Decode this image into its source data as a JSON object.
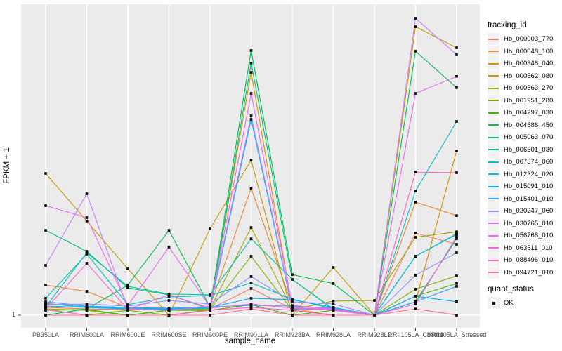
{
  "colors": {
    "panel_bg": "#EBEBEB",
    "gridline": "#FFFFFF",
    "legend_key_bg": "#F2F2F2",
    "point": "#000000",
    "tick": "#333333",
    "tick_label": "#4D4D4D"
  },
  "legend": {
    "tracking_title": "tracking_id",
    "quant_title": "quant_status",
    "quant_items": [
      {
        "label": "OK",
        "marker": "black-square"
      }
    ]
  },
  "chart_data": {
    "type": "line",
    "title": "",
    "xlabel": "sample_name",
    "ylabel": "FPKM + 1",
    "y_scale": "log10",
    "y_tick_labels": [
      "1"
    ],
    "legend_position": "right",
    "point_shape": "filled-square",
    "point_color": "#000000",
    "categories": [
      "PB350LA",
      "RRIM600LA",
      "RRIM600LE",
      "RRIM600SE",
      "RRIM600PE",
      "RRIM901LA",
      "RRIM928BA",
      "RRIM928LA",
      "RRIM928LE",
      "RRII105LA_Control",
      "RRII105LA_Stressed"
    ],
    "series": [
      {
        "name": "Hb_000003_770",
        "color": "#F8766D",
        "values": [
          1.27,
          1.21,
          1.19,
          1.16,
          1.21,
          2.27,
          1.21,
          1.0,
          1.0,
          12.4,
          8.79
        ]
      },
      {
        "name": "Hb_000048_100",
        "color": "#EA8331",
        "values": [
          2.52,
          2.08,
          1.27,
          1.21,
          1.32,
          49.2,
          1.32,
          1.21,
          1.0,
          32.0,
          21.2
        ]
      },
      {
        "name": "Hb_000348_040",
        "color": "#D89000",
        "values": [
          1.44,
          1.27,
          1.21,
          1.16,
          1.27,
          1710,
          1.27,
          1.16,
          1.0,
          1.51,
          154
        ]
      },
      {
        "name": "Hb_000562_080",
        "color": "#C09B00",
        "values": [
          77.3,
          17.9,
          4.14,
          1.0,
          14.1,
          116,
          1.0,
          4.32,
          1.0,
          6940,
          3640
        ]
      },
      {
        "name": "Hb_000563_270",
        "color": "#A3A500",
        "values": [
          1.21,
          1.16,
          1.0,
          1.16,
          1.21,
          14.7,
          1.19,
          1.54,
          1.57,
          10.9,
          12.9
        ]
      },
      {
        "name": "Hb_001951_280",
        "color": "#7CAE00",
        "values": [
          1.19,
          1.0,
          1.16,
          1.0,
          1.19,
          6.1,
          1.16,
          1.0,
          1.0,
          2.22,
          3.34
        ]
      },
      {
        "name": "Hb_004297_030",
        "color": "#39B600",
        "values": [
          1.16,
          1.19,
          1.0,
          1.16,
          1.16,
          1.38,
          1.0,
          1.16,
          1.0,
          1.79,
          2.64
        ]
      },
      {
        "name": "Hb_004586_450",
        "color": "#00BB4E",
        "values": [
          1.0,
          1.21,
          2.52,
          13.5,
          1.29,
          3340,
          3.48,
          2.64,
          1.0,
          3270,
          1070
        ]
      },
      {
        "name": "Hb_005063_070",
        "color": "#00BF7D",
        "values": [
          13.5,
          7.08,
          2.31,
          1.87,
          1.21,
          2270,
          3.0,
          1.21,
          1.0,
          1.51,
          10.4
        ]
      },
      {
        "name": "Hb_006501_030",
        "color": "#00C1A3",
        "values": [
          1.29,
          6.79,
          2.42,
          1.91,
          1.87,
          10.4,
          3.0,
          1.19,
          1.0,
          6.1,
          11.9
        ]
      },
      {
        "name": "Hb_007574_060",
        "color": "#00BFC4",
        "values": [
          1.68,
          6.5,
          1.38,
          1.75,
          1.83,
          2.69,
          1.64,
          1.21,
          1.0,
          45.1,
          380
        ]
      },
      {
        "name": "Hb_012324_020",
        "color": "#00BAE0",
        "values": [
          1.32,
          1.27,
          1.21,
          1.19,
          1.24,
          405,
          1.21,
          1.19,
          1.0,
          6.1,
          12.1
        ]
      },
      {
        "name": "Hb_015091_010",
        "color": "#00B0F6",
        "values": [
          1.41,
          1.29,
          1.24,
          1.21,
          1.27,
          1.68,
          1.61,
          1.27,
          1.0,
          1.79,
          1.51
        ]
      },
      {
        "name": "Hb_015401_010",
        "color": "#35A2FF",
        "values": [
          1.51,
          1.32,
          1.27,
          1.24,
          1.29,
          1.35,
          1.32,
          1.24,
          1.0,
          1.51,
          2.42
        ]
      },
      {
        "name": "Hb_020247_060",
        "color": "#9590FF",
        "values": [
          1.38,
          1.41,
          1.32,
          1.57,
          1.41,
          3.27,
          1.51,
          1.41,
          1.0,
          3.41,
          6.79
        ]
      },
      {
        "name": "Hb_030765_010",
        "color": "#C77CFF",
        "values": [
          4.61,
          41.4,
          1.21,
          1.16,
          1.32,
          451,
          1.27,
          1.19,
          1.0,
          8980,
          2930
        ]
      },
      {
        "name": "Hb_056768_010",
        "color": "#E76BF3",
        "values": [
          28.7,
          19.9,
          1.35,
          8.07,
          1.29,
          898,
          1.35,
          1.21,
          1.0,
          898,
          1510
        ]
      },
      {
        "name": "Hb_063511_010",
        "color": "#FA62DB",
        "values": [
          1.21,
          4.92,
          1.19,
          1.87,
          1.24,
          1.41,
          1.24,
          1.16,
          1.0,
          1.41,
          11.1
        ]
      },
      {
        "name": "Hb_088496_010",
        "color": "#FF62BC",
        "values": [
          1.19,
          1.0,
          1.0,
          1.0,
          1.16,
          1.27,
          1.16,
          1.0,
          1.0,
          80.7,
          78.9
        ]
      },
      {
        "name": "Hb_094721_010",
        "color": "#FF6A98",
        "values": [
          1.0,
          1.0,
          1.0,
          1.0,
          1.0,
          1.21,
          1.0,
          1.0,
          1.0,
          1.21,
          1.0
        ]
      }
    ]
  }
}
